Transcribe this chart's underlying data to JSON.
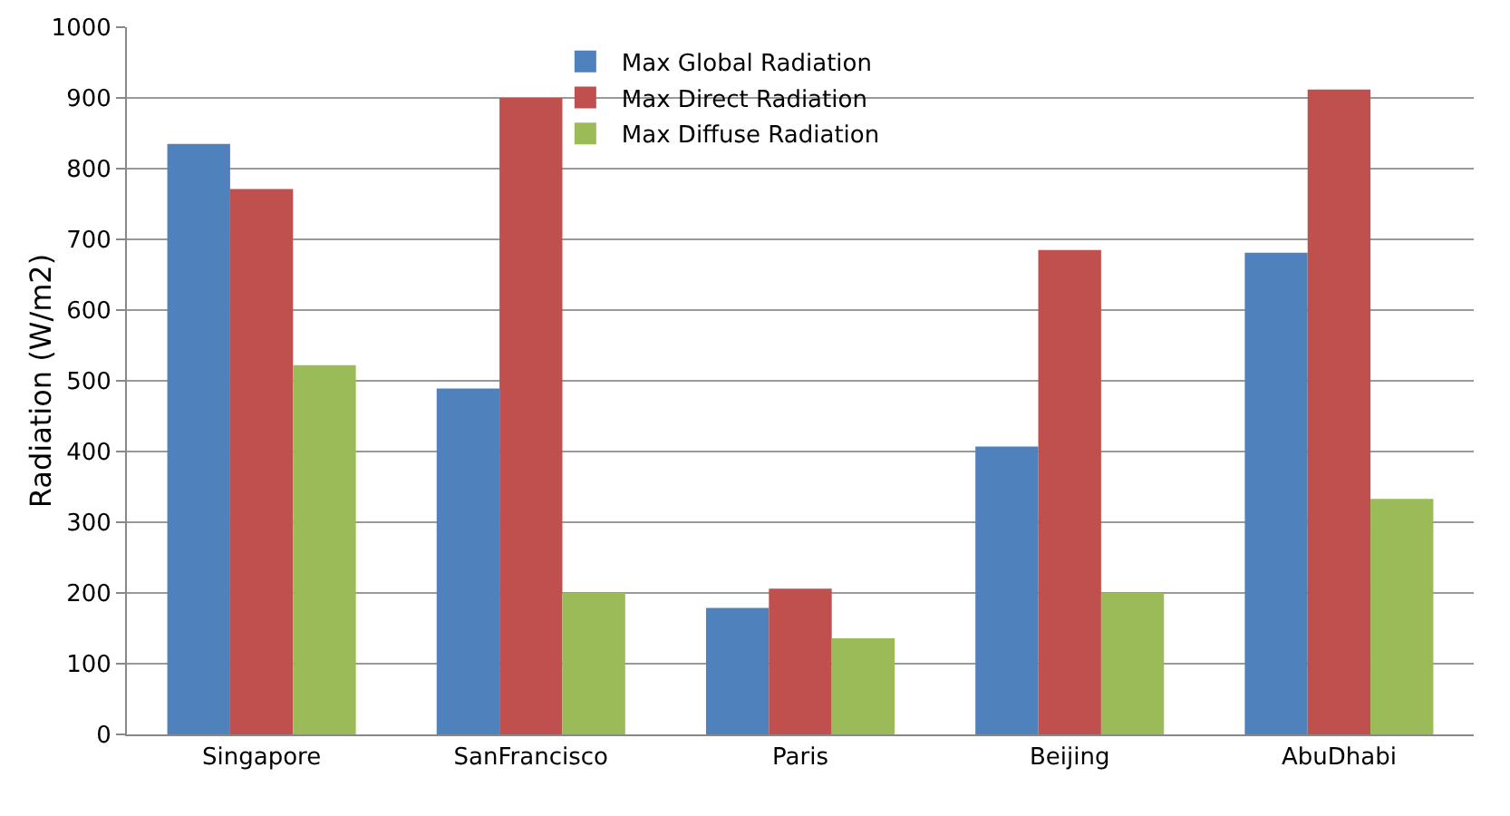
{
  "chart_data": {
    "type": "bar",
    "ylabel": "Radiation (W/m2)",
    "categories": [
      "Singapore",
      "SanFrancisco",
      "Paris",
      "Beijing",
      "AbuDhabi"
    ],
    "series": [
      {
        "name": "Max Global Radiation",
        "color": "#4f81bd",
        "values": [
          835,
          489,
          179,
          407,
          681
        ]
      },
      {
        "name": "Max Direct Radiation",
        "color": "#c0504d",
        "values": [
          771,
          900,
          206,
          685,
          912
        ]
      },
      {
        "name": "Max Diffuse Radiation",
        "color": "#9bbb59",
        "values": [
          522,
          200,
          136,
          200,
          333
        ]
      }
    ],
    "ylim": [
      0,
      1000
    ],
    "yticks": [
      0,
      100,
      200,
      300,
      400,
      500,
      600,
      700,
      800,
      900,
      1000
    ],
    "grid": "y",
    "legend": "top"
  }
}
